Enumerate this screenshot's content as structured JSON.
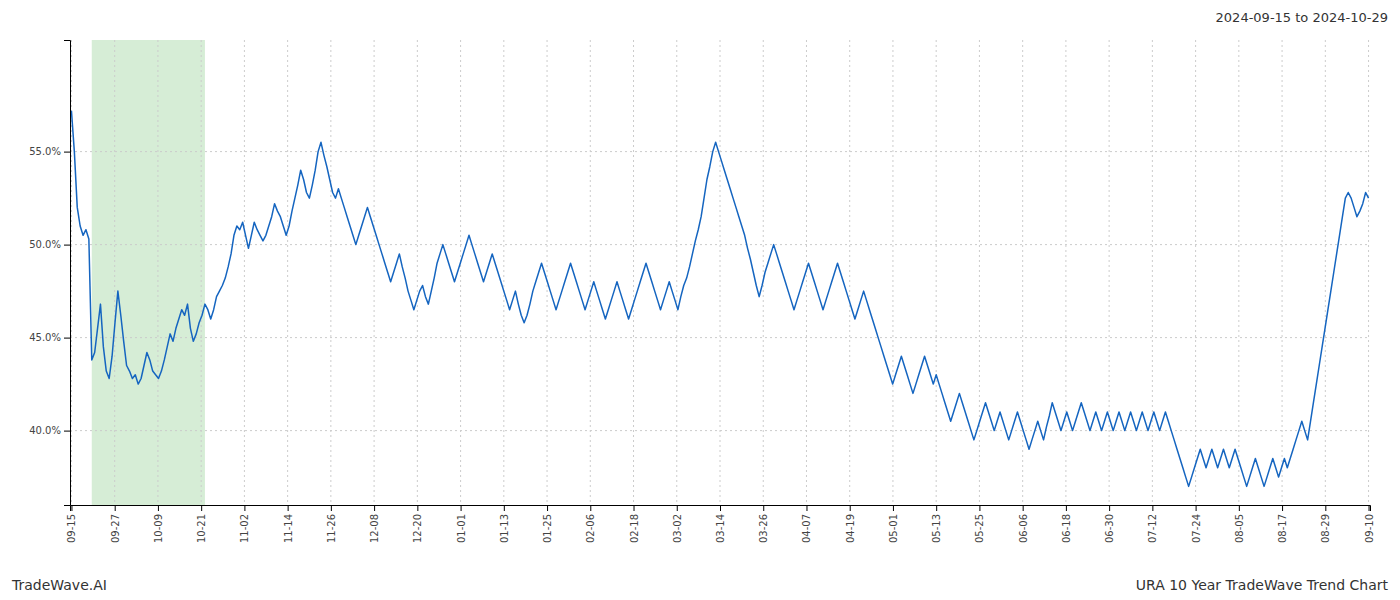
{
  "chart_data": {
    "type": "line",
    "title": "URA 10 Year TradeWave Trend Chart",
    "subtitle": "2024-09-15 to 2024-10-29",
    "annotations": [
      {
        "text": "TradeWave.AI"
      }
    ],
    "color": "#1565C0",
    "grid": true,
    "xlim": [
      -0.5,
      447.5
    ],
    "xticks": [
      {
        "value": 0,
        "label": "09-15"
      },
      {
        "value": 14.9,
        "label": "09-27"
      },
      {
        "value": 29.8,
        "label": "10-09"
      },
      {
        "value": 44.7,
        "label": "10-21"
      },
      {
        "value": 59.6,
        "label": "11-02"
      },
      {
        "value": 74.5,
        "label": "11-14"
      },
      {
        "value": 89.4,
        "label": "11-26"
      },
      {
        "value": 104.3,
        "label": "12-08"
      },
      {
        "value": 119.2,
        "label": "12-20"
      },
      {
        "value": 134.1,
        "label": "01-01"
      },
      {
        "value": 149,
        "label": "01-13"
      },
      {
        "value": 163.9,
        "label": "01-25"
      },
      {
        "value": 178.8,
        "label": "02-06"
      },
      {
        "value": 193.7,
        "label": "02-18"
      },
      {
        "value": 208.6,
        "label": "03-02"
      },
      {
        "value": 223.5,
        "label": "03-14"
      },
      {
        "value": 238.4,
        "label": "03-26"
      },
      {
        "value": 253.3,
        "label": "04-07"
      },
      {
        "value": 268.2,
        "label": "04-19"
      },
      {
        "value": 283.1,
        "label": "05-01"
      },
      {
        "value": 298,
        "label": "05-13"
      },
      {
        "value": 312.9,
        "label": "05-25"
      },
      {
        "value": 327.8,
        "label": "06-06"
      },
      {
        "value": 342.7,
        "label": "06-18"
      },
      {
        "value": 357.6,
        "label": "06-30"
      },
      {
        "value": 372.5,
        "label": "07-12"
      },
      {
        "value": 387.4,
        "label": "07-24"
      },
      {
        "value": 402.3,
        "label": "08-05"
      },
      {
        "value": 417.2,
        "label": "08-17"
      },
      {
        "value": 432.1,
        "label": "08-29"
      },
      {
        "value": 447,
        "label": "09-10"
      }
    ],
    "ylim": [
      36,
      61
    ],
    "yticks": [
      {
        "value": 40.0,
        "label": "40.0%"
      },
      {
        "value": 45.0,
        "label": "45.0%"
      },
      {
        "value": 50.0,
        "label": "50.0%"
      },
      {
        "value": 55.0,
        "label": "55.0%"
      }
    ],
    "spans": [
      {
        "x": [
          7,
          46
        ],
        "color": "#d6edd6"
      }
    ],
    "values": [
      57.2,
      55.0,
      52.0,
      51.0,
      50.5,
      50.8,
      50.3,
      43.8,
      44.2,
      45.5,
      46.8,
      44.5,
      43.2,
      42.8,
      44.0,
      45.8,
      47.5,
      46.2,
      44.8,
      43.5,
      43.2,
      42.8,
      43.0,
      42.5,
      42.8,
      43.5,
      44.2,
      43.8,
      43.2,
      43.0,
      42.8,
      43.2,
      43.8,
      44.5,
      45.2,
      44.8,
      45.5,
      46.0,
      46.5,
      46.2,
      46.8,
      45.5,
      44.8,
      45.2,
      45.8,
      46.2,
      46.8,
      46.5,
      46.0,
      46.5,
      47.2,
      47.5,
      47.8,
      48.2,
      48.8,
      49.5,
      50.5,
      51.0,
      50.8,
      51.2,
      50.5,
      49.8,
      50.5,
      51.2,
      50.8,
      50.5,
      50.2,
      50.5,
      51.0,
      51.5,
      52.2,
      51.8,
      51.5,
      51.0,
      50.5,
      51.0,
      51.8,
      52.5,
      53.2,
      54.0,
      53.5,
      52.8,
      52.5,
      53.2,
      54.0,
      55.0,
      55.5,
      54.8,
      54.2,
      53.5,
      52.8,
      52.5,
      53.0,
      52.5,
      52.0,
      51.5,
      51.0,
      50.5,
      50.0,
      50.5,
      51.0,
      51.5,
      52.0,
      51.5,
      51.0,
      50.5,
      50.0,
      49.5,
      49.0,
      48.5,
      48.0,
      48.5,
      49.0,
      49.5,
      48.8,
      48.2,
      47.5,
      47.0,
      46.5,
      47.0,
      47.5,
      47.8,
      47.2,
      46.8,
      47.5,
      48.2,
      49.0,
      49.5,
      50.0,
      49.5,
      49.0,
      48.5,
      48.0,
      48.5,
      49.0,
      49.5,
      50.0,
      50.5,
      50.0,
      49.5,
      49.0,
      48.5,
      48.0,
      48.5,
      49.0,
      49.5,
      49.0,
      48.5,
      48.0,
      47.5,
      47.0,
      46.5,
      47.0,
      47.5,
      46.8,
      46.2,
      45.8,
      46.2,
      46.8,
      47.5,
      48.0,
      48.5,
      49.0,
      48.5,
      48.0,
      47.5,
      47.0,
      46.5,
      47.0,
      47.5,
      48.0,
      48.5,
      49.0,
      48.5,
      48.0,
      47.5,
      47.0,
      46.5,
      47.0,
      47.5,
      48.0,
      47.5,
      47.0,
      46.5,
      46.0,
      46.5,
      47.0,
      47.5,
      48.0,
      47.5,
      47.0,
      46.5,
      46.0,
      46.5,
      47.0,
      47.5,
      48.0,
      48.5,
      49.0,
      48.5,
      48.0,
      47.5,
      47.0,
      46.5,
      47.0,
      47.5,
      48.0,
      47.5,
      47.0,
      46.5,
      47.2,
      47.8,
      48.2,
      48.8,
      49.5,
      50.2,
      50.8,
      51.5,
      52.5,
      53.5,
      54.2,
      55.0,
      55.5,
      55.0,
      54.5,
      54.0,
      53.5,
      53.0,
      52.5,
      52.0,
      51.5,
      51.0,
      50.5,
      49.8,
      49.2,
      48.5,
      47.8,
      47.2,
      47.8,
      48.5,
      49.0,
      49.5,
      50.0,
      49.5,
      49.0,
      48.5,
      48.0,
      47.5,
      47.0,
      46.5,
      47.0,
      47.5,
      48.0,
      48.5,
      49.0,
      48.5,
      48.0,
      47.5,
      47.0,
      46.5,
      47.0,
      47.5,
      48.0,
      48.5,
      49.0,
      48.5,
      48.0,
      47.5,
      47.0,
      46.5,
      46.0,
      46.5,
      47.0,
      47.5,
      47.0,
      46.5,
      46.0,
      45.5,
      45.0,
      44.5,
      44.0,
      43.5,
      43.0,
      42.5,
      43.0,
      43.5,
      44.0,
      43.5,
      43.0,
      42.5,
      42.0,
      42.5,
      43.0,
      43.5,
      44.0,
      43.5,
      43.0,
      42.5,
      43.0,
      42.5,
      42.0,
      41.5,
      41.0,
      40.5,
      41.0,
      41.5,
      42.0,
      41.5,
      41.0,
      40.5,
      40.0,
      39.5,
      40.0,
      40.5,
      41.0,
      41.5,
      41.0,
      40.5,
      40.0,
      40.5,
      41.0,
      40.5,
      40.0,
      39.5,
      40.0,
      40.5,
      41.0,
      40.5,
      40.0,
      39.5,
      39.0,
      39.5,
      40.0,
      40.5,
      40.0,
      39.5,
      40.2,
      40.8,
      41.5,
      41.0,
      40.5,
      40.0,
      40.5,
      41.0,
      40.5,
      40.0,
      40.5,
      41.0,
      41.5,
      41.0,
      40.5,
      40.0,
      40.5,
      41.0,
      40.5,
      40.0,
      40.5,
      41.0,
      40.5,
      40.0,
      40.5,
      41.0,
      40.5,
      40.0,
      40.5,
      41.0,
      40.5,
      40.0,
      40.5,
      41.0,
      40.5,
      40.0,
      40.5,
      41.0,
      40.5,
      40.0,
      40.5,
      41.0,
      40.5,
      40.0,
      39.5,
      39.0,
      38.5,
      38.0,
      37.5,
      37.0,
      37.5,
      38.0,
      38.5,
      39.0,
      38.5,
      38.0,
      38.5,
      39.0,
      38.5,
      38.0,
      38.5,
      39.0,
      38.5,
      38.0,
      38.5,
      39.0,
      38.5,
      38.0,
      37.5,
      37.0,
      37.5,
      38.0,
      38.5,
      38.0,
      37.5,
      37.0,
      37.5,
      38.0,
      38.5,
      38.0,
      37.5,
      38.0,
      38.5,
      38.0,
      38.5,
      39.0,
      39.5,
      40.0,
      40.5,
      40.0,
      39.5,
      40.5,
      41.5,
      42.5,
      43.5,
      44.5,
      45.5,
      46.5,
      47.5,
      48.5,
      49.5,
      50.5,
      51.5,
      52.5,
      52.8,
      52.5,
      52.0,
      51.5,
      51.8,
      52.2,
      52.8,
      52.5
    ]
  }
}
